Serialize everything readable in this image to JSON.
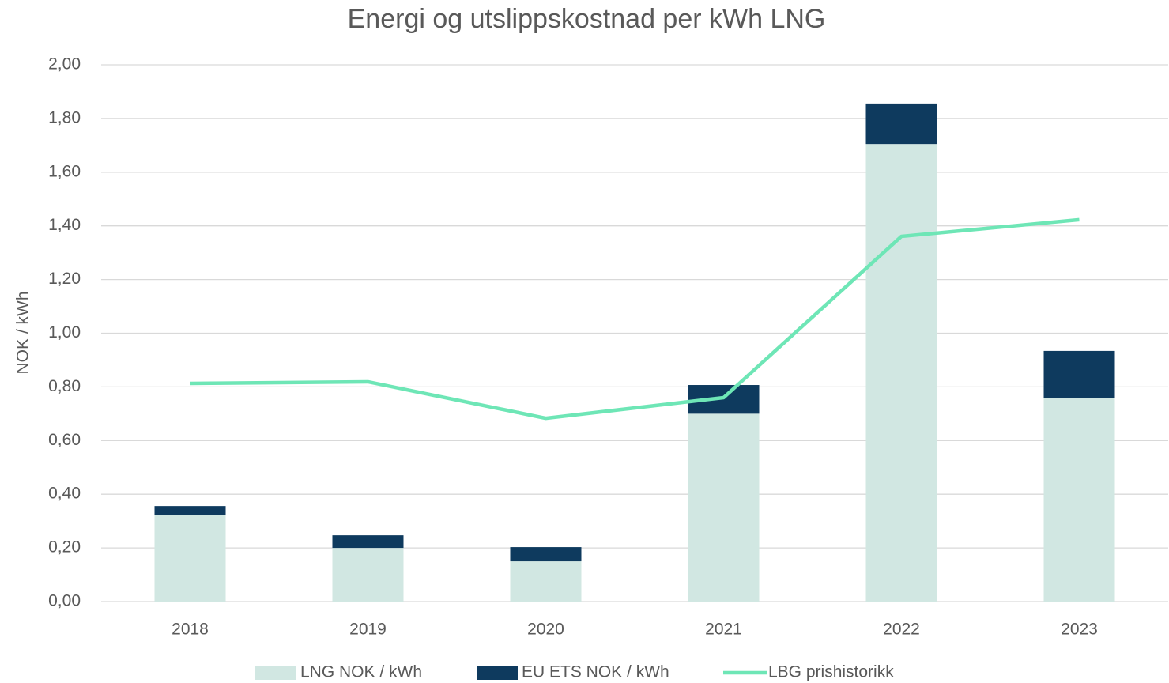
{
  "chart_data": {
    "type": "bar",
    "stacked": true,
    "title": "Energi og utslippskostnad per kWh LNG",
    "y_label": "NOK / kWh",
    "categories": [
      "2018",
      "2019",
      "2020",
      "2021",
      "2022",
      "2023"
    ],
    "series": [
      {
        "name": "LNG NOK / kWh",
        "type": "bar",
        "color": "#d1e7e2",
        "values": [
          0.324,
          0.2,
          0.15,
          0.7,
          1.705,
          0.757
        ]
      },
      {
        "name": "EU ETS NOK / kWh",
        "type": "bar",
        "color": "#0e3a5e",
        "values": [
          0.032,
          0.047,
          0.053,
          0.107,
          0.151,
          0.177
        ]
      },
      {
        "name": "LBG prishistorikk",
        "type": "line",
        "color": "#6ee6b6",
        "values": [
          0.813,
          0.819,
          0.683,
          0.76,
          1.361,
          1.423
        ]
      }
    ],
    "ylim": [
      0,
      2
    ],
    "yticks": [
      {
        "value": 0,
        "label": "0,00"
      },
      {
        "value": 0.2,
        "label": "0,20"
      },
      {
        "value": 0.4,
        "label": "0,40"
      },
      {
        "value": 0.6,
        "label": "0,60"
      },
      {
        "value": 0.8,
        "label": "0,80"
      },
      {
        "value": 1,
        "label": "1,00"
      },
      {
        "value": 1.2,
        "label": "1,20"
      },
      {
        "value": 1.4,
        "label": "1,40"
      },
      {
        "value": 1.6,
        "label": "1,60"
      },
      {
        "value": 1.8,
        "label": "1,80"
      },
      {
        "value": 2,
        "label": "2,00"
      }
    ],
    "grid": true,
    "legend": "bottom"
  }
}
